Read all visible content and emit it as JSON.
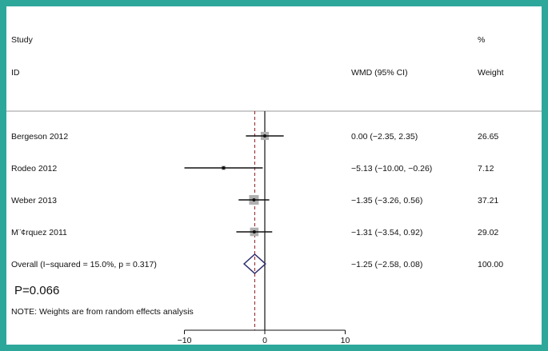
{
  "header": {
    "study_label": "Study",
    "id_label": "ID",
    "effect_label": "WMD (95% CI)",
    "pct_label": "%",
    "weight_label": "Weight"
  },
  "chart_data": {
    "type": "forest",
    "xlabel": "",
    "xlim": [
      -10,
      10
    ],
    "xticks": [
      "−10",
      "0",
      "10"
    ],
    "null_line": 0,
    "studies": [
      {
        "id": "Bergeson 2012",
        "estimate": 0.0,
        "ci_low": -2.35,
        "ci_high": 2.35,
        "ci_text": "0.00 (−2.35, 2.35)",
        "weight": 26.65,
        "weight_text": "26.65"
      },
      {
        "id": "Rodeo 2012",
        "estimate": -5.13,
        "ci_low": -10.0,
        "ci_high": -0.26,
        "ci_text": "−5.13 (−10.00, −0.26)",
        "weight": 7.12,
        "weight_text": "7.12"
      },
      {
        "id": "Weber 2013",
        "estimate": -1.35,
        "ci_low": -3.26,
        "ci_high": 0.56,
        "ci_text": "−1.35 (−3.26, 0.56)",
        "weight": 37.21,
        "weight_text": "37.21"
      },
      {
        "id": "M¨¢rquez 2011",
        "estimate": -1.31,
        "ci_low": -3.54,
        "ci_high": 0.92,
        "ci_text": "−1.31 (−3.54, 0.92)",
        "weight": 29.02,
        "weight_text": "29.02"
      }
    ],
    "overall": {
      "label": "Overall  (I−squared = 15.0%, p = 0.317)",
      "estimate": -1.25,
      "ci_low": -2.58,
      "ci_high": 0.08,
      "ci_text": "−1.25 (−2.58, 0.08)",
      "weight_text": "100.00"
    },
    "p_value": "P=0.066",
    "note": "NOTE: Weights are from random effects analysis"
  },
  "colors": {
    "frame": "#2ea79b",
    "ci_line": "#111111",
    "weight_box": "#b0b0b0",
    "overall_line": "#8b1a1a",
    "diamond": "#2b2b6b"
  }
}
